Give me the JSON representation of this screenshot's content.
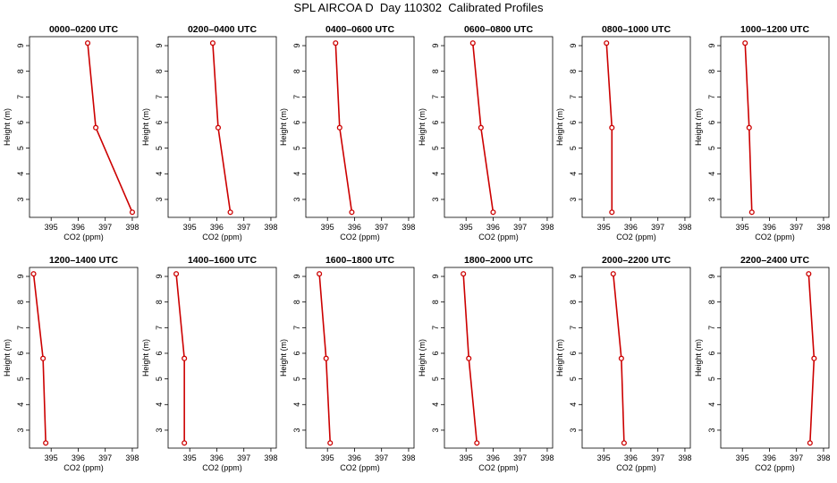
{
  "page_title": "SPL AIRCOA D  Day 110302  Calibrated Profiles",
  "colors": {
    "line": "#cc0000",
    "point": "#cc0000",
    "axis": "#000000"
  },
  "chart_data": [
    {
      "type": "line",
      "title": "0000–0200 UTC",
      "xlabel": "CO2 (ppm)",
      "ylabel": "Height (m)",
      "xlim": [
        394.2,
        398.2
      ],
      "ylim": [
        2.3,
        9.35
      ],
      "x_ticks": [
        395,
        396,
        397,
        398
      ],
      "y_ticks": [
        3,
        4,
        5,
        6,
        7,
        8,
        9
      ],
      "grid": false,
      "series": [
        {
          "x": [
            396.35,
            396.65,
            398.0
          ],
          "y": [
            9.1,
            5.8,
            2.5
          ]
        }
      ]
    },
    {
      "type": "line",
      "title": "0200–0400 UTC",
      "xlabel": "CO2 (ppm)",
      "ylabel": "Height (m)",
      "xlim": [
        394.2,
        398.2
      ],
      "ylim": [
        2.3,
        9.35
      ],
      "x_ticks": [
        395,
        396,
        397,
        398
      ],
      "y_ticks": [
        3,
        4,
        5,
        6,
        7,
        8,
        9
      ],
      "grid": false,
      "series": [
        {
          "x": [
            395.85,
            396.05,
            396.5
          ],
          "y": [
            9.1,
            5.8,
            2.5
          ]
        }
      ]
    },
    {
      "type": "line",
      "title": "0400–0600 UTC",
      "xlabel": "CO2 (ppm)",
      "ylabel": "Height (m)",
      "xlim": [
        394.2,
        398.2
      ],
      "ylim": [
        2.3,
        9.35
      ],
      "x_ticks": [
        395,
        396,
        397,
        398
      ],
      "y_ticks": [
        3,
        4,
        5,
        6,
        7,
        8,
        9
      ],
      "grid": false,
      "series": [
        {
          "x": [
            395.3,
            395.45,
            395.9
          ],
          "y": [
            9.1,
            5.8,
            2.5
          ]
        }
      ]
    },
    {
      "type": "line",
      "title": "0600–0800 UTC",
      "xlabel": "CO2 (ppm)",
      "ylabel": "Height (m)",
      "xlim": [
        394.2,
        398.2
      ],
      "ylim": [
        2.3,
        9.35
      ],
      "x_ticks": [
        395,
        396,
        397,
        398
      ],
      "y_ticks": [
        3,
        4,
        5,
        6,
        7,
        8,
        9
      ],
      "grid": false,
      "series": [
        {
          "x": [
            395.25,
            395.55,
            396.0
          ],
          "y": [
            9.1,
            5.8,
            2.5
          ]
        }
      ]
    },
    {
      "type": "line",
      "title": "0800–1000 UTC",
      "xlabel": "CO2 (ppm)",
      "ylabel": "Height (m)",
      "xlim": [
        394.2,
        398.2
      ],
      "ylim": [
        2.3,
        9.35
      ],
      "x_ticks": [
        395,
        396,
        397,
        398
      ],
      "y_ticks": [
        3,
        4,
        5,
        6,
        7,
        8,
        9
      ],
      "grid": false,
      "series": [
        {
          "x": [
            395.1,
            395.3,
            395.3
          ],
          "y": [
            9.1,
            5.8,
            2.5
          ]
        }
      ]
    },
    {
      "type": "line",
      "title": "1000–1200 UTC",
      "xlabel": "CO2 (ppm)",
      "ylabel": "Height (m)",
      "xlim": [
        394.2,
        398.2
      ],
      "ylim": [
        2.3,
        9.35
      ],
      "x_ticks": [
        395,
        396,
        397,
        398
      ],
      "y_ticks": [
        3,
        4,
        5,
        6,
        7,
        8,
        9
      ],
      "grid": false,
      "series": [
        {
          "x": [
            395.1,
            395.25,
            395.35
          ],
          "y": [
            9.1,
            5.8,
            2.5
          ]
        }
      ]
    },
    {
      "type": "line",
      "title": "1200–1400 UTC",
      "xlabel": "CO2 (ppm)",
      "ylabel": "Height (m)",
      "xlim": [
        394.2,
        398.2
      ],
      "ylim": [
        2.3,
        9.35
      ],
      "x_ticks": [
        395,
        396,
        397,
        398
      ],
      "y_ticks": [
        3,
        4,
        5,
        6,
        7,
        8,
        9
      ],
      "grid": false,
      "series": [
        {
          "x": [
            394.35,
            394.7,
            394.8
          ],
          "y": [
            9.1,
            5.8,
            2.5
          ]
        }
      ]
    },
    {
      "type": "line",
      "title": "1400–1600 UTC",
      "xlabel": "CO2 (ppm)",
      "ylabel": "Height (m)",
      "xlim": [
        394.2,
        398.2
      ],
      "ylim": [
        2.3,
        9.35
      ],
      "x_ticks": [
        395,
        396,
        397,
        398
      ],
      "y_ticks": [
        3,
        4,
        5,
        6,
        7,
        8,
        9
      ],
      "grid": false,
      "series": [
        {
          "x": [
            394.5,
            394.8,
            394.8
          ],
          "y": [
            9.1,
            5.8,
            2.5
          ]
        }
      ]
    },
    {
      "type": "line",
      "title": "1600–1800 UTC",
      "xlabel": "CO2 (ppm)",
      "ylabel": "Height (m)",
      "xlim": [
        394.2,
        398.2
      ],
      "ylim": [
        2.3,
        9.35
      ],
      "x_ticks": [
        395,
        396,
        397,
        398
      ],
      "y_ticks": [
        3,
        4,
        5,
        6,
        7,
        8,
        9
      ],
      "grid": false,
      "series": [
        {
          "x": [
            394.7,
            394.95,
            395.1
          ],
          "y": [
            9.1,
            5.8,
            2.5
          ]
        }
      ]
    },
    {
      "type": "line",
      "title": "1800–2000 UTC",
      "xlabel": "CO2 (ppm)",
      "ylabel": "Height (m)",
      "xlim": [
        394.2,
        398.2
      ],
      "ylim": [
        2.3,
        9.35
      ],
      "x_ticks": [
        395,
        396,
        397,
        398
      ],
      "y_ticks": [
        3,
        4,
        5,
        6,
        7,
        8,
        9
      ],
      "grid": false,
      "series": [
        {
          "x": [
            394.9,
            395.1,
            395.4
          ],
          "y": [
            9.1,
            5.8,
            2.5
          ]
        }
      ]
    },
    {
      "type": "line",
      "title": "2000–2200 UTC",
      "xlabel": "CO2 (ppm)",
      "ylabel": "Height (m)",
      "xlim": [
        394.2,
        398.2
      ],
      "ylim": [
        2.3,
        9.35
      ],
      "x_ticks": [
        395,
        396,
        397,
        398
      ],
      "y_ticks": [
        3,
        4,
        5,
        6,
        7,
        8,
        9
      ],
      "grid": false,
      "series": [
        {
          "x": [
            395.35,
            395.65,
            395.75
          ],
          "y": [
            9.1,
            5.8,
            2.5
          ]
        }
      ]
    },
    {
      "type": "line",
      "title": "2200–2400 UTC",
      "xlabel": "CO2 (ppm)",
      "ylabel": "Height (m)",
      "xlim": [
        394.2,
        398.2
      ],
      "ylim": [
        2.3,
        9.35
      ],
      "x_ticks": [
        395,
        396,
        397,
        398
      ],
      "y_ticks": [
        3,
        4,
        5,
        6,
        7,
        8,
        9
      ],
      "grid": false,
      "series": [
        {
          "x": [
            397.45,
            397.65,
            397.5
          ],
          "y": [
            9.1,
            5.8,
            2.5
          ]
        }
      ]
    }
  ]
}
